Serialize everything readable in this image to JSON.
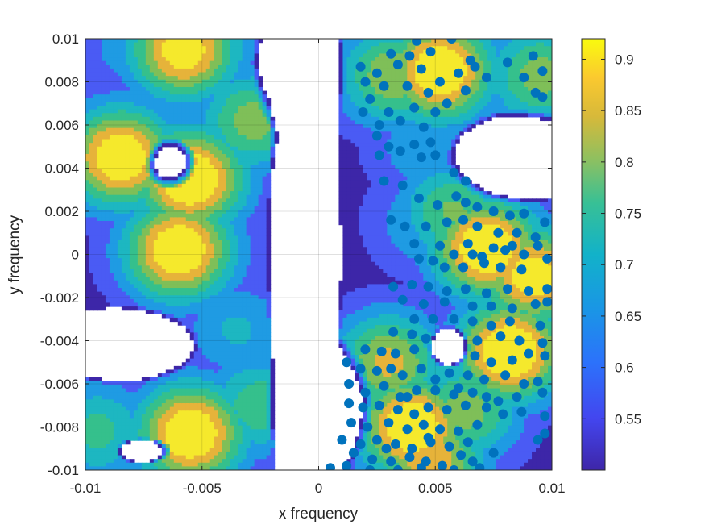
{
  "chart_data": {
    "type": "contour",
    "title": "",
    "xlabel": "x frequency",
    "ylabel": "y frequency",
    "xlim": [
      -0.01,
      0.01
    ],
    "ylim": [
      -0.01,
      0.01
    ],
    "grid": true,
    "x_ticks": [
      -0.01,
      -0.005,
      0,
      0.005,
      0.01
    ],
    "x_tick_labels": [
      "-0.01",
      "-0.005",
      "0",
      "0.005",
      "0.01"
    ],
    "y_ticks": [
      0.01,
      0.008,
      0.006,
      0.004,
      0.002,
      0,
      -0.002,
      -0.004,
      -0.006,
      -0.008,
      -0.01
    ],
    "y_tick_labels": [
      "0.01",
      "0.008",
      "0.006",
      "0.004",
      "0.002",
      "0",
      "-0.002",
      "-0.004",
      "-0.006",
      "-0.008",
      "-0.01"
    ],
    "colorbar": {
      "colormap": "parula",
      "min": 0.5,
      "max": 0.92,
      "ticks": [
        0.9,
        0.85,
        0.8,
        0.75,
        0.7,
        0.65,
        0.6,
        0.55
      ],
      "tick_labels": [
        "0.9",
        "0.85",
        "0.8",
        "0.75",
        "0.7",
        "0.65",
        "0.6",
        "0.55"
      ]
    },
    "contour_levels": [
      0.5,
      0.55,
      0.6,
      0.65,
      0.7,
      0.75,
      0.8,
      0.85,
      0.9
    ],
    "level_colors": [
      "#3d26a8",
      "#4a5bf4",
      "#1f9be3",
      "#1db7c1",
      "#35c08c",
      "#7fbf58",
      "#e6b33a",
      "#f5e92c"
    ],
    "region_seeds": [
      [
        -0.0085,
        0.0045,
        0.92
      ],
      [
        -0.0055,
        0.0035,
        0.94
      ],
      [
        -0.006,
        0.0002,
        0.93
      ],
      [
        -0.0058,
        0.0095,
        0.9
      ],
      [
        -0.0055,
        -0.0083,
        0.93
      ],
      [
        -0.0028,
        0.0062,
        0.78
      ],
      [
        -0.0035,
        -0.0035,
        0.66
      ],
      [
        -0.0045,
        0.0045,
        0.68
      ],
      [
        -0.0095,
        -0.0082,
        0.72
      ],
      [
        -0.0082,
        0.0095,
        0.62
      ],
      [
        -0.0025,
        -0.007,
        0.74
      ],
      [
        0.0052,
        0.0085,
        0.93
      ],
      [
        0.0072,
        0.0003,
        0.93
      ],
      [
        0.0082,
        -0.0045,
        0.94
      ],
      [
        0.0092,
        -0.001,
        0.9
      ],
      [
        0.004,
        -0.008,
        0.93
      ],
      [
        0.0048,
        -0.0095,
        0.85
      ],
      [
        0.0047,
        0.0015,
        0.66
      ],
      [
        0.0045,
        0.005,
        0.64
      ],
      [
        0.0032,
        0.0083,
        0.8
      ],
      [
        0.003,
        -0.005,
        0.82
      ],
      [
        0.0058,
        -0.0055,
        0.7
      ],
      [
        0.0095,
        0.0083,
        0.78
      ],
      [
        0.0058,
        0.002,
        0.76
      ],
      [
        0.0063,
        -0.0072,
        0.78
      ]
    ],
    "holes": [
      [
        -0.0063,
        0.0042,
        0.0011,
        0.0012
      ],
      [
        -0.0085,
        -0.0042,
        0.0034,
        0.0018
      ],
      [
        -0.0075,
        -0.0091,
        0.0012,
        0.0006
      ],
      [
        -0.0006,
        0.0,
        0.0016,
        0.02
      ],
      [
        0.0087,
        0.0045,
        0.0032,
        0.0022
      ],
      [
        0.0056,
        -0.0043,
        0.0009,
        0.001
      ],
      [
        0.0,
        -0.007,
        0.0023,
        0.0035
      ],
      [
        -0.0008,
        0.0085,
        0.002,
        0.0035
      ]
    ],
    "scatter_points": [
      [
        0.0042,
        0.0099
      ],
      [
        0.0057,
        0.01
      ],
      [
        0.0031,
        0.0093
      ],
      [
        0.0039,
        0.0092
      ],
      [
        0.0048,
        0.0094
      ],
      [
        0.0065,
        0.009
      ],
      [
        0.0018,
        0.0087
      ],
      [
        0.0025,
        0.0084
      ],
      [
        0.0034,
        0.0088
      ],
      [
        0.0044,
        0.0086
      ],
      [
        0.0052,
        0.008
      ],
      [
        0.006,
        0.0084
      ],
      [
        0.0067,
        0.0087
      ],
      [
        0.0081,
        0.0089
      ],
      [
        0.0092,
        0.0092
      ],
      [
        0.0096,
        0.0085
      ],
      [
        0.0088,
        0.0082
      ],
      [
        0.0072,
        0.0082
      ],
      [
        0.002,
        0.008
      ],
      [
        0.0028,
        0.0078
      ],
      [
        0.0038,
        0.0078
      ],
      [
        0.0047,
        0.0075
      ],
      [
        0.0055,
        0.007
      ],
      [
        0.0063,
        0.0076
      ],
      [
        0.0093,
        0.0075
      ],
      [
        0.0096,
        0.0073
      ],
      [
        0.0022,
        0.0072
      ],
      [
        0.003,
        0.0066
      ],
      [
        0.0041,
        0.0068
      ],
      [
        0.005,
        0.0066
      ],
      [
        0.0019,
        0.0066
      ],
      [
        0.0026,
        0.006
      ],
      [
        0.0035,
        0.0062
      ],
      [
        0.0045,
        0.0059
      ],
      [
        0.0025,
        0.0055
      ],
      [
        0.003,
        0.005
      ],
      [
        0.0041,
        0.0051
      ],
      [
        0.0048,
        0.0052
      ],
      [
        0.0035,
        0.0048
      ],
      [
        0.0044,
        0.0045
      ],
      [
        0.005,
        0.0046
      ],
      [
        0.0026,
        0.0046
      ],
      [
        0.0028,
        0.0034
      ],
      [
        0.0036,
        0.0032
      ],
      [
        0.0058,
        0.0038
      ],
      [
        0.0063,
        0.0034
      ],
      [
        0.0043,
        0.0026
      ],
      [
        0.0051,
        0.0023
      ],
      [
        0.0059,
        0.0027
      ],
      [
        0.0063,
        0.0024
      ],
      [
        0.0068,
        0.0022
      ],
      [
        0.0075,
        0.002
      ],
      [
        0.0082,
        0.0018
      ],
      [
        0.0088,
        0.0019
      ],
      [
        0.0097,
        0.0015
      ],
      [
        0.0031,
        0.0016
      ],
      [
        0.0037,
        0.0013
      ],
      [
        0.0046,
        0.0013
      ],
      [
        0.0055,
        0.0015
      ],
      [
        0.0062,
        0.0016
      ],
      [
        0.0068,
        0.0013
      ],
      [
        0.0077,
        0.001
      ],
      [
        0.0085,
        0.001
      ],
      [
        0.0093,
        0.0008
      ],
      [
        0.0041,
        0.0005
      ],
      [
        0.0052,
        0.0004
      ],
      [
        0.0064,
        0.0005
      ],
      [
        0.0075,
        0.0003
      ],
      [
        0.0083,
        0.0004
      ],
      [
        0.0094,
        0.0004
      ],
      [
        0.0043,
        -0.0002
      ],
      [
        0.0049,
        -0.0003
      ],
      [
        0.0058,
        0.0
      ],
      [
        0.0066,
        0.0
      ],
      [
        0.0071,
        -0.0004
      ],
      [
        0.008,
        0.0002
      ],
      [
        0.0088,
        0.0
      ],
      [
        0.0098,
        -0.0002
      ],
      [
        0.0054,
        -0.0006
      ],
      [
        0.0062,
        -0.0006
      ],
      [
        0.007,
        -0.0001
      ],
      [
        0.0078,
        -0.0006
      ],
      [
        0.0087,
        -0.0007
      ],
      [
        0.004,
        -0.0014
      ],
      [
        0.0047,
        -0.0015
      ],
      [
        0.0055,
        -0.0017
      ],
      [
        0.0063,
        -0.0016
      ],
      [
        0.0072,
        -0.0018
      ],
      [
        0.0081,
        -0.0016
      ],
      [
        0.009,
        -0.0017
      ],
      [
        0.0098,
        -0.0016
      ],
      [
        0.0032,
        -0.0015
      ],
      [
        0.0036,
        -0.0021
      ],
      [
        0.0045,
        -0.0023
      ],
      [
        0.0054,
        -0.0022
      ],
      [
        0.0066,
        -0.0024
      ],
      [
        0.0074,
        -0.0024
      ],
      [
        0.0083,
        -0.0025
      ],
      [
        0.0093,
        -0.0023
      ],
      [
        0.0098,
        -0.0022
      ],
      [
        0.0041,
        -0.003
      ],
      [
        0.0049,
        -0.003
      ],
      [
        0.0058,
        -0.003
      ],
      [
        0.0066,
        -0.0031
      ],
      [
        0.0074,
        -0.0033
      ],
      [
        0.0082,
        -0.0031
      ],
      [
        0.0095,
        -0.0033
      ],
      [
        0.0032,
        -0.0036
      ],
      [
        0.004,
        -0.0037
      ],
      [
        0.0046,
        -0.0039
      ],
      [
        0.0068,
        -0.004
      ],
      [
        0.0078,
        -0.0038
      ],
      [
        0.0086,
        -0.004
      ],
      [
        0.0096,
        -0.0041
      ],
      [
        0.002,
        -0.0044
      ],
      [
        0.0027,
        -0.0045
      ],
      [
        0.0033,
        -0.0046
      ],
      [
        0.0041,
        -0.0044
      ],
      [
        0.0067,
        -0.0047
      ],
      [
        0.0074,
        -0.005
      ],
      [
        0.0083,
        -0.0049
      ],
      [
        0.009,
        -0.0046
      ],
      [
        0.0097,
        -0.0047
      ],
      [
        0.0012,
        -0.005
      ],
      [
        0.0018,
        -0.0053
      ],
      [
        0.0025,
        -0.0054
      ],
      [
        0.0031,
        -0.0053
      ],
      [
        0.0036,
        -0.0056
      ],
      [
        0.0044,
        -0.0053
      ],
      [
        0.0056,
        -0.0055
      ],
      [
        0.0064,
        -0.0056
      ],
      [
        0.0071,
        -0.0058
      ],
      [
        0.008,
        -0.0056
      ],
      [
        0.0088,
        -0.006
      ],
      [
        0.0094,
        -0.0059
      ],
      [
        0.0013,
        -0.006
      ],
      [
        0.002,
        -0.0064
      ],
      [
        0.0028,
        -0.0061
      ],
      [
        0.0035,
        -0.0066
      ],
      [
        0.0042,
        -0.0063
      ],
      [
        0.005,
        -0.0063
      ],
      [
        0.0058,
        -0.0065
      ],
      [
        0.0066,
        -0.0064
      ],
      [
        0.0077,
        -0.0068
      ],
      [
        0.0085,
        -0.0066
      ],
      [
        0.0096,
        -0.0064
      ],
      [
        0.0013,
        -0.0069
      ],
      [
        0.0019,
        -0.0071
      ],
      [
        0.0026,
        -0.007
      ],
      [
        0.0034,
        -0.0072
      ],
      [
        0.0041,
        -0.0074
      ],
      [
        0.0047,
        -0.0071
      ],
      [
        0.0055,
        -0.0072
      ],
      [
        0.0063,
        -0.007
      ],
      [
        0.0072,
        -0.0071
      ],
      [
        0.0079,
        -0.0074
      ],
      [
        0.0087,
        -0.0073
      ],
      [
        0.0097,
        -0.0075
      ],
      [
        0.0014,
        -0.0078
      ],
      [
        0.0021,
        -0.008
      ],
      [
        0.003,
        -0.0078
      ],
      [
        0.0038,
        -0.0081
      ],
      [
        0.0045,
        -0.0079
      ],
      [
        0.0052,
        -0.0081
      ],
      [
        0.006,
        -0.0082
      ],
      [
        0.0068,
        -0.0079
      ],
      [
        0.0097,
        -0.0083
      ],
      [
        0.001,
        -0.0086
      ],
      [
        0.0018,
        -0.0088
      ],
      [
        0.0025,
        -0.0086
      ],
      [
        0.0033,
        -0.0088
      ],
      [
        0.004,
        -0.009
      ],
      [
        0.0048,
        -0.0087
      ],
      [
        0.0056,
        -0.0089
      ],
      [
        0.0064,
        -0.0087
      ],
      [
        0.0094,
        -0.0086
      ],
      [
        0.0015,
        -0.0092
      ],
      [
        0.0023,
        -0.0095
      ],
      [
        0.0031,
        -0.0096
      ],
      [
        0.0039,
        -0.0094
      ],
      [
        0.0046,
        -0.0096
      ],
      [
        0.0053,
        -0.0098
      ],
      [
        0.0061,
        -0.0093
      ],
      [
        0.0069,
        -0.0099
      ],
      [
        0.0005,
        -0.0099
      ],
      [
        0.0012,
        -0.0098
      ],
      [
        0.0022,
        -0.01
      ],
      [
        0.0034,
        -0.01
      ],
      [
        0.0044,
        -0.0099
      ],
      [
        0.0058,
        -0.01
      ],
      [
        0.0066,
        -0.0096
      ],
      [
        0.0075,
        -0.0092
      ],
      [
        0.0038,
        -0.0066
      ],
      [
        0.005,
        -0.0058
      ],
      [
        0.0029,
        -0.009
      ],
      [
        0.006,
        -0.0062
      ],
      [
        0.0047,
        -0.0085
      ],
      [
        0.0072,
        -0.0066
      ]
    ]
  }
}
